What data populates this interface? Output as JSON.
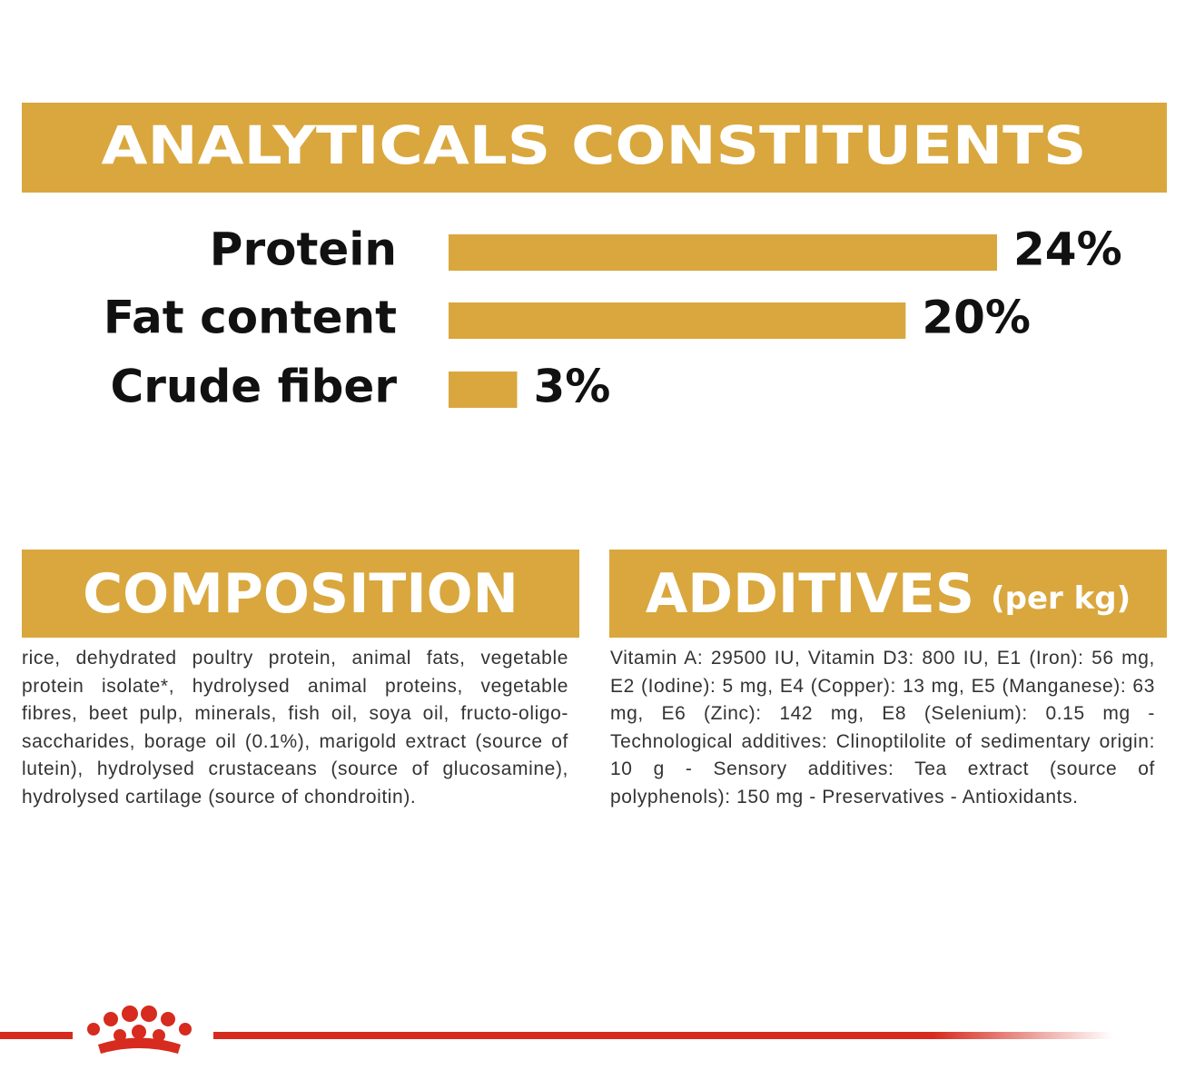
{
  "chart_data": {
    "type": "bar",
    "title": "ANALYTICALS CONSTITUENTS",
    "categories": [
      "Protein",
      "Fat content",
      "Crude fiber"
    ],
    "values": [
      24,
      20,
      3
    ],
    "value_labels": [
      "24%",
      "20%",
      "3%"
    ],
    "color": "#d9a73d"
  },
  "composition": {
    "title": "COMPOSITION",
    "text": "rice, dehydrated poultry protein, animal fats, vegetable protein isolate*, hydrolysed animal proteins, vegetable fibres, beet pulp, minerals, fish oil, soya oil, fructo-oligo-saccharides, borage oil (0.1%), marigold extract (source of lutein), hydrolysed crustaceans (source of glucosamine), hydrolysed cartilage (source of chondroitin)."
  },
  "additives": {
    "title": "ADDITIVES",
    "unit": "(per kg)",
    "text": "Vitamin A: 29500 IU, Vitamin D3: 800 IU, E1 (Iron): 56 mg, E2 (Iodine): 5 mg, E4 (Copper): 13 mg, E5 (Manganese): 63 mg, E6 (Zinc): 142 mg, E8 (Selenium): 0.15 mg - Technological additives: Clinoptilolite of sedimentary origin: 10 g - Sensory additives: Tea extract (source of polyphenols): 150 mg - Preservatives - Antioxidants."
  }
}
